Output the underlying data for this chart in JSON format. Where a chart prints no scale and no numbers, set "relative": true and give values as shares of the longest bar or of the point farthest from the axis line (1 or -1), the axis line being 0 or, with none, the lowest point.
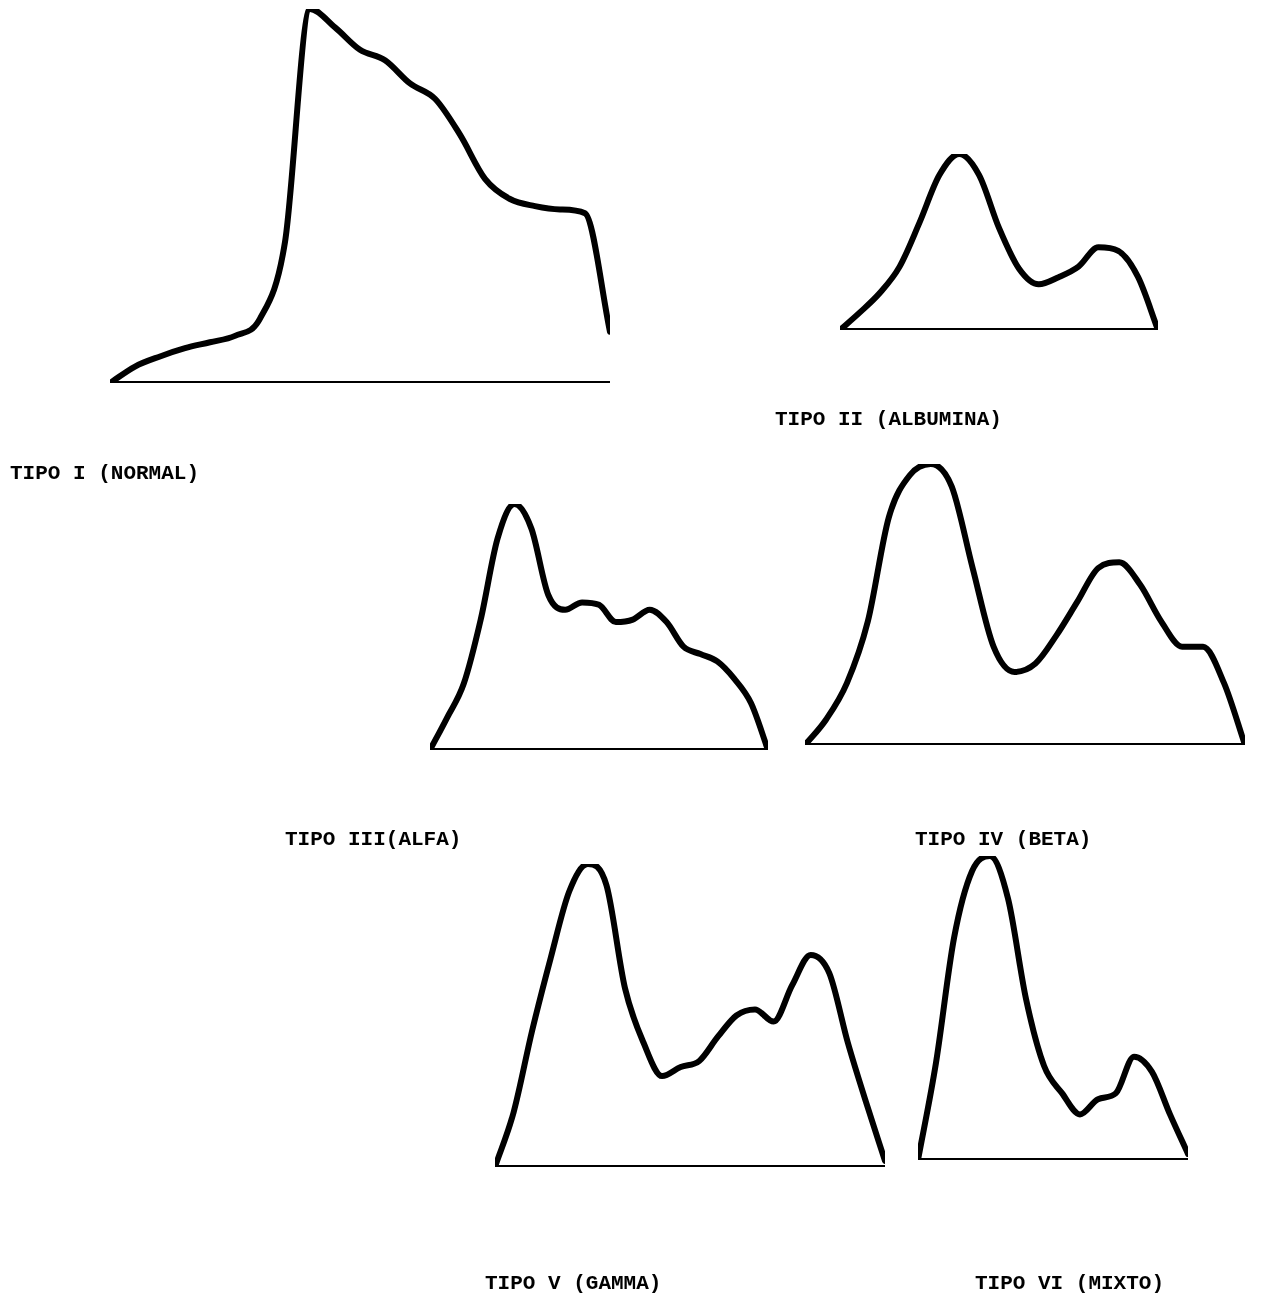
{
  "chart_data": [
    {
      "type": "line",
      "title": "TIPO I (NORMAL)",
      "relative": true,
      "tick_labels": false,
      "categories": [
        null,
        null,
        null,
        null,
        null,
        null,
        null,
        null,
        null,
        null,
        null,
        null,
        null,
        null,
        null,
        null,
        null,
        null,
        null,
        null,
        null
      ],
      "series": [
        {
          "color": "#000000",
          "values": [
            0,
            0.044,
            0.071,
            0.093,
            0.109,
            0.126,
            0.172,
            0.377,
            1.0,
            0.951,
            0.891,
            0.863,
            0.801,
            0.76,
            0.664,
            0.546,
            0.492,
            0.473,
            0.464,
            0.454,
            0.137
          ]
        }
      ]
    },
    {
      "type": "line",
      "title": "TIPO II (ALBUMINA)",
      "relative": true,
      "tick_labels": false,
      "categories": [
        null,
        null,
        null,
        null,
        null,
        null,
        null,
        null,
        null,
        null,
        null,
        null,
        null,
        null,
        null,
        null,
        null
      ],
      "series": [
        {
          "color": "#000000",
          "values": [
            0,
            0.1,
            0.21,
            0.36,
            0.61,
            0.88,
            1.0,
            0.88,
            0.58,
            0.35,
            0.26,
            0.3,
            0.36,
            0.47,
            0.45,
            0.3,
            0
          ]
        }
      ]
    },
    {
      "type": "line",
      "title": "TIPO III(ALFA)",
      "relative": true,
      "tick_labels": false,
      "categories": [
        null,
        null,
        null,
        null,
        null,
        null,
        null,
        null,
        null,
        null,
        null,
        null,
        null,
        null,
        null,
        null,
        null,
        null,
        null,
        null,
        null
      ],
      "series": [
        {
          "color": "#000000",
          "values": [
            0,
            0.13,
            0.27,
            0.53,
            0.86,
            1.0,
            0.9,
            0.63,
            0.57,
            0.6,
            0.59,
            0.52,
            0.53,
            0.57,
            0.52,
            0.42,
            0.39,
            0.36,
            0.29,
            0.19,
            0
          ]
        }
      ]
    },
    {
      "type": "line",
      "title": "TIPO IV (BETA)",
      "relative": true,
      "tick_labels": false,
      "categories": [
        null,
        null,
        null,
        null,
        null,
        null,
        null,
        null,
        null,
        null,
        null,
        null,
        null,
        null,
        null,
        null,
        null,
        null,
        null,
        null,
        null,
        null
      ],
      "series": [
        {
          "color": "#000000",
          "values": [
            0,
            0.09,
            0.22,
            0.44,
            0.81,
            0.96,
            1.0,
            0.92,
            0.63,
            0.35,
            0.26,
            0.29,
            0.39,
            0.51,
            0.63,
            0.65,
            0.57,
            0.44,
            0.35,
            0.35,
            0.22,
            0
          ]
        }
      ]
    },
    {
      "type": "line",
      "title": "TIPO V (GAMMA)",
      "relative": true,
      "tick_labels": false,
      "categories": [
        null,
        null,
        null,
        null,
        null,
        null,
        null,
        null,
        null,
        null,
        null,
        null,
        null,
        null,
        null,
        null,
        null,
        null,
        null,
        null,
        null,
        null
      ],
      "series": [
        {
          "color": "#000000",
          "values": [
            0,
            0.18,
            0.45,
            0.69,
            0.91,
            1.0,
            0.93,
            0.59,
            0.41,
            0.3,
            0.33,
            0.35,
            0.43,
            0.5,
            0.52,
            0.48,
            0.6,
            0.7,
            0.64,
            0.41,
            0.21,
            0.02
          ]
        }
      ]
    },
    {
      "type": "line",
      "title": "TIPO VI (MIXTO)",
      "relative": true,
      "tick_labels": false,
      "categories": [
        null,
        null,
        null,
        null,
        null,
        null,
        null,
        null,
        null,
        null,
        null,
        null,
        null,
        null,
        null,
        null
      ],
      "series": [
        {
          "color": "#000000",
          "values": [
            0,
            0.32,
            0.73,
            0.95,
            1.0,
            0.86,
            0.53,
            0.31,
            0.22,
            0.15,
            0.2,
            0.22,
            0.34,
            0.29,
            0.15,
            0.02
          ]
        }
      ]
    }
  ]
}
